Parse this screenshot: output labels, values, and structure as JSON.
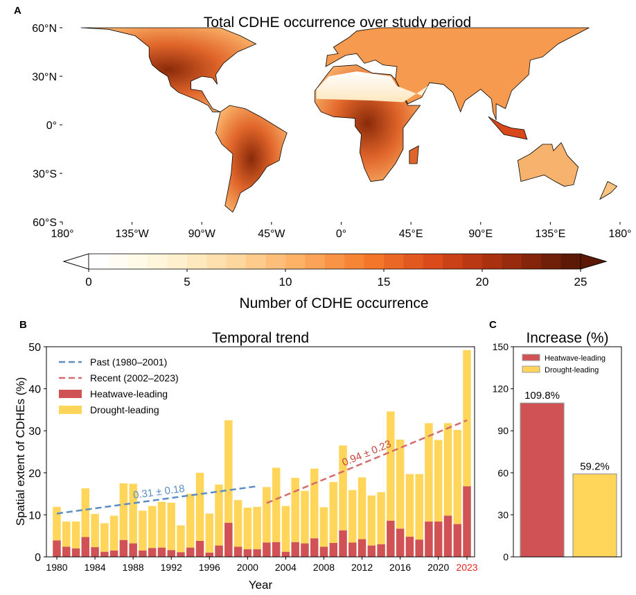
{
  "chart_data": [
    {
      "panel": "A",
      "type": "heatmap",
      "title": "Total CDHE occurrence over study period",
      "lon_ticks": [
        "180°",
        "135°W",
        "90°W",
        "45°W",
        "0°",
        "45°E",
        "90°E",
        "135°E",
        "180°"
      ],
      "lat_ticks": [
        "60°N",
        "30°N",
        "0°",
        "30°S",
        "60°S"
      ],
      "colorbar": {
        "label": "Number of CDHE occurrence",
        "ticks": [
          "0",
          "5",
          "10",
          "15",
          "20",
          "25"
        ],
        "range": [
          0,
          25
        ],
        "colors": [
          "#ffffff",
          "#fff5d6",
          "#fdd9a0",
          "#fdae61",
          "#f57a2c",
          "#d9481a",
          "#a02c0e",
          "#5c1a06"
        ]
      }
    },
    {
      "panel": "B",
      "type": "bar",
      "stacked": true,
      "title": "Temporal trend",
      "xlabel": "Year",
      "ylabel": "Spatial extent of CDHEs (%)",
      "ylim": [
        0,
        50
      ],
      "yticks": [
        "0",
        "10",
        "20",
        "30",
        "40",
        "50"
      ],
      "xticks": [
        "1980",
        "1984",
        "1988",
        "1992",
        "1996",
        "2000",
        "2004",
        "2008",
        "2012",
        "2016",
        "2020",
        "2023"
      ],
      "highlight_tick": "2023",
      "highlight_color": "#e8251f",
      "years": [
        1980,
        1981,
        1982,
        1983,
        1984,
        1985,
        1986,
        1987,
        1988,
        1989,
        1990,
        1991,
        1992,
        1993,
        1994,
        1995,
        1996,
        1997,
        1998,
        1999,
        2000,
        2001,
        2002,
        2003,
        2004,
        2005,
        2006,
        2007,
        2008,
        2009,
        2010,
        2011,
        2012,
        2013,
        2014,
        2015,
        2016,
        2017,
        2018,
        2019,
        2020,
        2021,
        2022,
        2023
      ],
      "series": [
        {
          "name": "Heatwave-leading",
          "color": "#d05255",
          "values": [
            3.9,
            2.4,
            2.0,
            4.7,
            2.3,
            1.2,
            1.5,
            4.0,
            3.2,
            1.5,
            2.1,
            2.2,
            1.6,
            1.1,
            2.2,
            3.8,
            1.0,
            2.7,
            8.1,
            2.4,
            1.8,
            1.8,
            3.4,
            3.5,
            1.2,
            3.5,
            3.2,
            4.4,
            2.4,
            3.3,
            6.3,
            3.4,
            4.2,
            2.7,
            3.0,
            8.6,
            6.7,
            4.8,
            4.1,
            8.4,
            8.4,
            9.8,
            7.8,
            16.8
          ]
        },
        {
          "name": "Drought-leading",
          "color": "#ffd55a",
          "totals": [
            11.9,
            8.4,
            8.4,
            16.3,
            10.2,
            8.0,
            9.8,
            17.5,
            17.4,
            11.0,
            12.1,
            13.1,
            12.9,
            7.5,
            15.0,
            20.0,
            10.3,
            17.2,
            32.5,
            13.5,
            11.7,
            11.9,
            16.6,
            21.2,
            12.1,
            18.8,
            15.7,
            21.0,
            11.8,
            17.8,
            26.5,
            15.9,
            18.9,
            14.6,
            15.4,
            34.6,
            27.9,
            19.7,
            19.7,
            31.8,
            27.8,
            31.8,
            30.2,
            49.2
          ]
        }
      ],
      "trends": [
        {
          "name": "Past (1980–2001)",
          "color": "#5b8cc4",
          "from": [
            1980,
            10.3
          ],
          "to": [
            2001,
            16.8
          ],
          "label": "0.31 ± 0.18"
        },
        {
          "name": "Recent (2002–2023)",
          "color": "#d46b6b",
          "from": [
            2002,
            12.8
          ],
          "to": [
            2023,
            32.5
          ],
          "label": "0.94 ± 0.23"
        }
      ],
      "legend": "top-left"
    },
    {
      "panel": "C",
      "type": "bar",
      "title": "Increase (%)",
      "categories": [
        "Heatwave-leading",
        "Drought-leading"
      ],
      "values": [
        109.8,
        59.2
      ],
      "labels": [
        "109.8%",
        "59.2%"
      ],
      "colors": [
        "#d05255",
        "#ffd55a"
      ],
      "ylim": [
        0,
        150
      ],
      "yticks": [
        "0",
        "30",
        "60",
        "90",
        "120",
        "150"
      ],
      "legend": "top-left"
    }
  ],
  "panel_letters": [
    "A",
    "B",
    "C"
  ]
}
